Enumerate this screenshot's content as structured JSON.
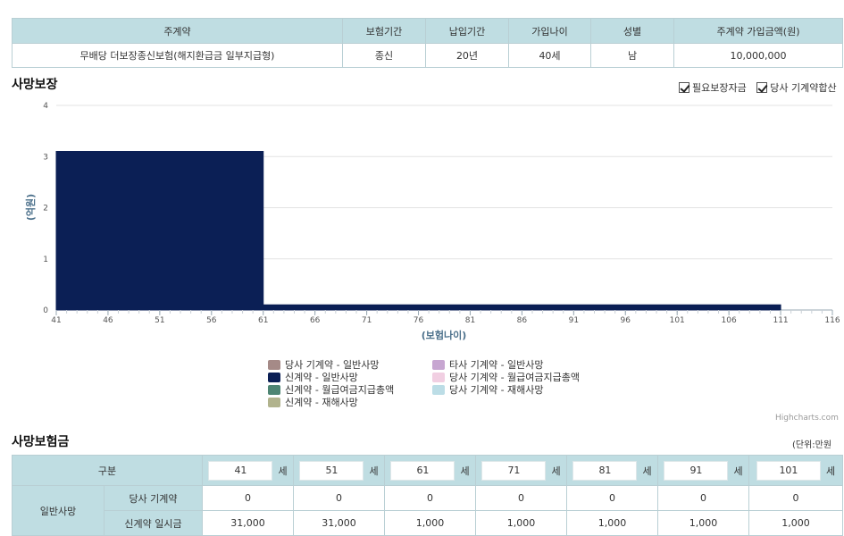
{
  "top_table": {
    "headers": [
      "주계약",
      "보험기간",
      "납입기간",
      "가입나이",
      "성별",
      "주계약 가입금액(원)"
    ],
    "row": [
      "무배당 더보장종신보험(해지환급금 일부지급형)",
      "종신",
      "20년",
      "40세",
      "남",
      "10,000,000"
    ]
  },
  "death_section": {
    "title": "사망보장",
    "checkbox_1": "필요보장자금",
    "checkbox_2": "당사 기계약합산"
  },
  "chart_data": {
    "type": "area",
    "title": "",
    "xlabel": "(보험나이)",
    "ylabel": "(억원)",
    "xlim": [
      41,
      116
    ],
    "ylim": [
      0,
      4
    ],
    "x_ticks": [
      41,
      46,
      51,
      56,
      61,
      66,
      71,
      76,
      81,
      86,
      91,
      96,
      101,
      106,
      111,
      116
    ],
    "y_ticks": [
      0,
      1,
      2,
      3,
      4
    ],
    "grid": true,
    "series": [
      {
        "name": "신계약 - 일반사망",
        "color": "#0b1f55",
        "step": true,
        "x": [
          41,
          61,
          111
        ],
        "values": [
          3.1,
          0.1,
          0.1
        ]
      }
    ],
    "legend": [
      {
        "name": "당사 기계약 - 일반사망",
        "color": "#a58a87"
      },
      {
        "name": "타사 기계약 - 일반사망",
        "color": "#c7a6d1"
      },
      {
        "name": "신계약 - 일반사망",
        "color": "#0b1f55"
      },
      {
        "name": "당사 기계약 - 월급여금지급총액",
        "color": "#f1cfe2"
      },
      {
        "name": "신계약 - 월급여금지급총액",
        "color": "#4e8573"
      },
      {
        "name": "당사 기계약 - 재해사망",
        "color": "#bcdde6"
      },
      {
        "name": "신계약 - 재해사망",
        "color": "#b1b38d"
      }
    ],
    "legend_position": "bottom"
  },
  "credit": "Highcharts.com",
  "insurance_section": {
    "title": "사망보험금",
    "unit": "(단위:만원"
  },
  "bottom_table": {
    "header_label": "구분",
    "age_suffix": "세",
    "ages": [
      "41",
      "51",
      "61",
      "71",
      "81",
      "91",
      "101"
    ],
    "group_label": "일반사망",
    "rows": [
      {
        "label": "당사 기계약",
        "values": [
          "0",
          "0",
          "0",
          "0",
          "0",
          "0",
          "0"
        ]
      },
      {
        "label": "신계약 일시금",
        "values": [
          "31,000",
          "31,000",
          "1,000",
          "1,000",
          "1,000",
          "1,000",
          "1,000"
        ]
      }
    ]
  }
}
